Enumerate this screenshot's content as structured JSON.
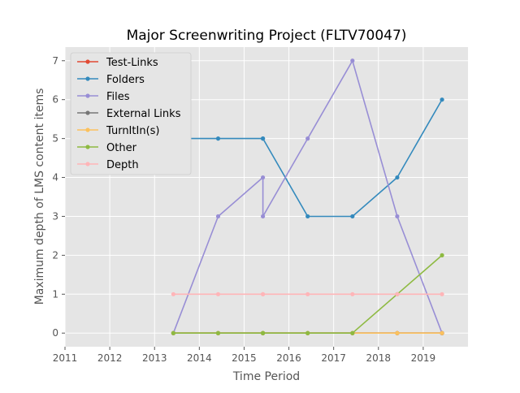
{
  "chart_data": {
    "type": "line",
    "title": "Major Screenwriting Project (FLTV70047)",
    "xlabel": "Time Period",
    "ylabel": "Maximum depth of LMS content items",
    "xlim": [
      2011,
      2020
    ],
    "ylim": [
      -0.35,
      7.35
    ],
    "xticks": [
      "2011",
      "2012",
      "2013",
      "2014",
      "2015",
      "2016",
      "2017",
      "2018",
      "2019"
    ],
    "yticks": [
      "0",
      "1",
      "2",
      "3",
      "4",
      "5",
      "6",
      "7"
    ],
    "grid": true,
    "legend_position": "top-left",
    "background": "#e5e5e5",
    "series": [
      {
        "name": "Test-Links",
        "color": "#e24a33",
        "x": [
          2013.42,
          2014.42,
          2015.42,
          2015.42,
          2016.42,
          2017.42,
          2018.42,
          2019.42
        ],
        "y": [
          0,
          0,
          0,
          0,
          0,
          0,
          0,
          0
        ]
      },
      {
        "name": "Folders",
        "color": "#348abd",
        "x": [
          2013.42,
          2014.42,
          2015.42,
          2015.42,
          2016.42,
          2017.42,
          2018.42,
          2019.42
        ],
        "y": [
          5,
          5,
          5,
          5,
          3,
          3,
          4,
          6
        ]
      },
      {
        "name": "Files",
        "color": "#988ed5",
        "x": [
          2013.42,
          2014.42,
          2015.42,
          2015.42,
          2016.42,
          2017.42,
          2018.42,
          2019.42
        ],
        "y": [
          0,
          3,
          4,
          3,
          5,
          7,
          3,
          0
        ]
      },
      {
        "name": "External Links",
        "color": "#777777",
        "x": [
          2013.42,
          2014.42,
          2015.42,
          2015.42,
          2016.42,
          2017.42,
          2018.42,
          2019.42
        ],
        "y": [
          0,
          0,
          0,
          0,
          0,
          0,
          0,
          0
        ]
      },
      {
        "name": "TurnItIn(s)",
        "color": "#fbc15e",
        "x": [
          2013.42,
          2014.42,
          2015.42,
          2015.42,
          2016.42,
          2017.42,
          2018.42,
          2019.42
        ],
        "y": [
          0,
          0,
          0,
          0,
          0,
          0,
          0,
          0
        ]
      },
      {
        "name": "Other",
        "color": "#8eba42",
        "x": [
          2013.42,
          2014.42,
          2015.42,
          2015.42,
          2016.42,
          2017.42,
          2018.42,
          2019.42
        ],
        "y": [
          0,
          0,
          0,
          0,
          0,
          0,
          1,
          2
        ]
      },
      {
        "name": "Depth",
        "color": "#ffb5b8",
        "x": [
          2013.42,
          2014.42,
          2015.42,
          2015.42,
          2016.42,
          2017.42,
          2018.42,
          2019.42
        ],
        "y": [
          1,
          1,
          1,
          1,
          1,
          1,
          1,
          1
        ]
      }
    ]
  }
}
